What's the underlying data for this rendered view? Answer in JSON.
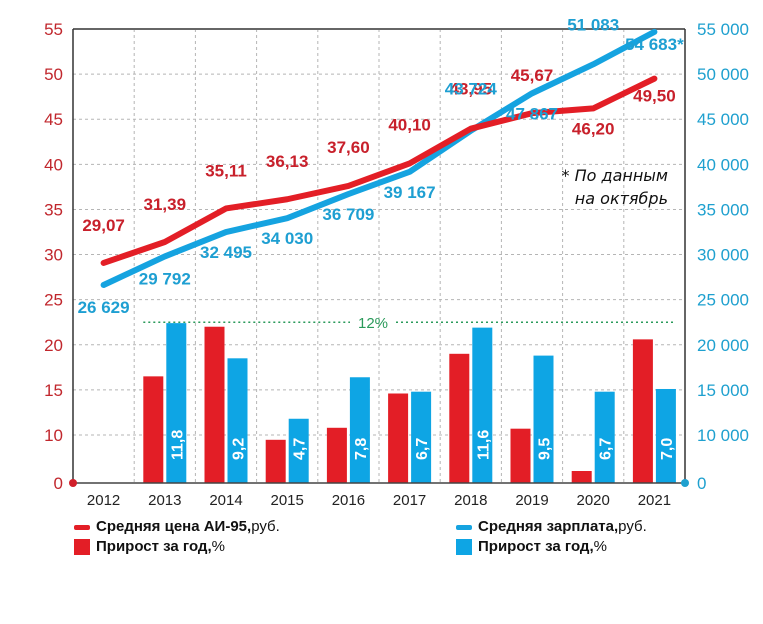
{
  "chart_data": {
    "type": "bar+line",
    "title": "",
    "categories": [
      "2012",
      "2013",
      "2014",
      "2015",
      "2016",
      "2017",
      "2018",
      "2019",
      "2020",
      "2021"
    ],
    "left_axis": {
      "label": "",
      "ticks": [
        "0",
        "10",
        "15",
        "20",
        "25",
        "30",
        "35",
        "40",
        "45",
        "50",
        "55"
      ],
      "tick_values": [
        0,
        10,
        15,
        20,
        25,
        30,
        35,
        40,
        45,
        50,
        55
      ],
      "range": [
        0,
        55
      ],
      "color": "#c1272d"
    },
    "right_axis": {
      "label": "",
      "ticks": [
        "0",
        "10 000",
        "15 000",
        "20 000",
        "25 000",
        "30 000",
        "35 000",
        "40 000",
        "45 000",
        "50 000",
        "55 000"
      ],
      "tick_values": [
        0,
        10000,
        15000,
        20000,
        25000,
        30000,
        35000,
        40000,
        45000,
        50000,
        55000
      ],
      "range": [
        0,
        55000
      ],
      "color": "#1ea0cf"
    },
    "grid": true,
    "series": [
      {
        "name": "Средняя цена АИ-95, руб.",
        "kind": "line",
        "axis": "left",
        "color": "#e31e26",
        "values": [
          29.07,
          31.39,
          35.11,
          36.13,
          37.6,
          40.1,
          43.95,
          45.67,
          46.2,
          49.5
        ],
        "labels": [
          "29,07",
          "31,39",
          "35,11",
          "36,13",
          "37,60",
          "40,10",
          "43,95",
          "45,67",
          "46,20",
          "49,50"
        ]
      },
      {
        "name": "Средняя зарплата, руб.",
        "kind": "line",
        "axis": "right",
        "color": "#15a3e0",
        "values": [
          26629,
          29792,
          32495,
          34030,
          36709,
          39167,
          43724,
          47867,
          51083,
          54683
        ],
        "labels": [
          "26 629",
          "29 792",
          "32 495",
          "34 030",
          "36 709",
          "39 167",
          "43 724",
          "47 867",
          "51 083",
          "54 683*"
        ]
      },
      {
        "name": "Прирост за год, % (цена АИ-95)",
        "kind": "bar",
        "axis": "left",
        "color": "#e31e26",
        "values": [
          null,
          16.5,
          22.0,
          9.0,
          10.8,
          14.6,
          19.0,
          10.7,
          2.5,
          20.6
        ],
        "labels": []
      },
      {
        "name": "Прирост за год, % (зарплата)",
        "kind": "bar",
        "axis": "left",
        "color": "#0ea5e4",
        "values": [
          null,
          22.4,
          18.5,
          11.8,
          16.4,
          14.8,
          21.9,
          18.8,
          14.8,
          15.1
        ],
        "labels": [
          "",
          "11,8",
          "9,2",
          "4,7",
          "7,8",
          "6,7",
          "11,6",
          "9,5",
          "6,7",
          "7,0"
        ]
      }
    ],
    "reference_line": {
      "label": "12%",
      "level": 22.5,
      "from": "2013",
      "to": "2021",
      "color": "#2a9a5a"
    },
    "annotation": [
      "* По данным",
      "на октябрь"
    ],
    "legend": {
      "position": "bottom",
      "items": [
        {
          "bold": "Средняя цена АИ-95,",
          "normal": " руб.",
          "swatch": "line",
          "color": "#e31e26"
        },
        {
          "bold": "Прирост за год,",
          "normal": " %",
          "swatch": "box",
          "color": "#e31e26"
        },
        {
          "bold": "Средняя зарплата,",
          "normal": " руб.",
          "swatch": "line",
          "color": "#15a3e0"
        },
        {
          "bold": "Прирост за год,",
          "normal": " %",
          "swatch": "box",
          "color": "#0ea5e4"
        }
      ]
    }
  }
}
